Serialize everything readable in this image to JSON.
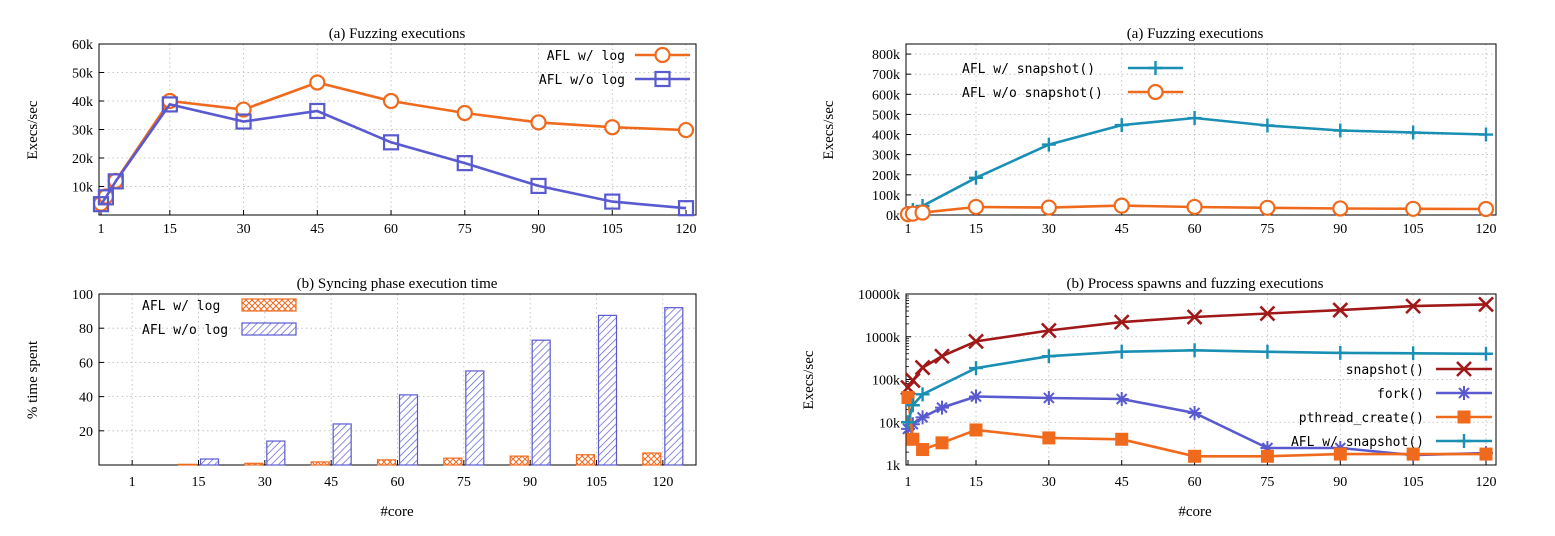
{
  "chart_data": [
    {
      "id": "execs_log",
      "type": "line",
      "title": "(a) Fuzzing executions",
      "xlabel": "",
      "ylabel": "Execs/sec",
      "x": [
        1,
        2,
        4,
        15,
        30,
        45,
        60,
        75,
        90,
        105,
        120
      ],
      "xticks": [
        1,
        15,
        30,
        45,
        60,
        75,
        90,
        105,
        120
      ],
      "ylim": [
        0,
        60000
      ],
      "yticks": [
        10000,
        20000,
        30000,
        40000,
        50000,
        60000
      ],
      "ytick_labels": [
        "10k",
        "20k",
        "30k",
        "40k",
        "50k",
        "60k"
      ],
      "grid": true,
      "legend_position": "top-right",
      "series": [
        {
          "name": "AFL w/   log",
          "color": "#f06a1e",
          "marker": "circle",
          "values": [
            4000,
            6500,
            12000,
            40000,
            37000,
            46500,
            40000,
            35800,
            32500,
            30800,
            29800
          ]
        },
        {
          "name": "AFL w/o log",
          "color": "#5a5ad0",
          "marker": "square",
          "values": [
            3800,
            6200,
            11800,
            38800,
            32800,
            36500,
            25500,
            18200,
            10200,
            4700,
            2400
          ]
        }
      ]
    },
    {
      "id": "sync_time",
      "type": "bar",
      "title": "(b) Syncing phase execution time",
      "xlabel": "#core",
      "ylabel": "% time spent",
      "categories": [
        "1",
        "15",
        "30",
        "45",
        "60",
        "75",
        "90",
        "105",
        "120"
      ],
      "ylim": [
        0,
        100
      ],
      "yticks": [
        20,
        40,
        60,
        80,
        100
      ],
      "grid": true,
      "legend_position": "top-left",
      "series": [
        {
          "name": "AFL w/   log",
          "color": "#f06a1e",
          "pattern": "crosshatch",
          "values": [
            0,
            0.4,
            1.0,
            1.8,
            3.0,
            4.0,
            5.2,
            6.0,
            7.0
          ]
        },
        {
          "name": "AFL w/o log",
          "color": "#5a5ad0",
          "pattern": "diagonal",
          "values": [
            0,
            3.5,
            14,
            24,
            41,
            55,
            73,
            87.5,
            92
          ]
        }
      ]
    },
    {
      "id": "execs_snapshot",
      "type": "line",
      "title": "(a) Fuzzing executions",
      "xlabel": "",
      "ylabel": "Execs/sec",
      "x": [
        1,
        2,
        4,
        15,
        30,
        45,
        60,
        75,
        90,
        105,
        120
      ],
      "xticks": [
        1,
        15,
        30,
        45,
        60,
        75,
        90,
        105,
        120
      ],
      "ylim": [
        0,
        850000
      ],
      "yticks": [
        0,
        100000,
        200000,
        300000,
        400000,
        500000,
        600000,
        700000,
        800000
      ],
      "ytick_labels": [
        "0k",
        "100k",
        "200k",
        "300k",
        "400k",
        "500k",
        "600k",
        "700k",
        "800k"
      ],
      "grid": true,
      "legend_position": "top-left",
      "series": [
        {
          "name": "AFL w/  snapshot()",
          "color": "#1a8fb4",
          "marker": "plus",
          "values": [
            10000,
            25000,
            45000,
            185000,
            350000,
            447000,
            482000,
            445000,
            420000,
            410000,
            400000
          ]
        },
        {
          "name": "AFL w/o snapshot()",
          "color": "#f06a1e",
          "marker": "circle",
          "values": [
            4000,
            6500,
            12000,
            40000,
            37000,
            46500,
            40000,
            35800,
            32500,
            30800,
            29800
          ]
        }
      ]
    },
    {
      "id": "spawns",
      "type": "line",
      "title": "(b) Process spawns and fuzzing executions",
      "xlabel": "#core",
      "ylabel": "Execs/sec",
      "x": [
        1,
        2,
        4,
        8,
        15,
        30,
        45,
        60,
        75,
        90,
        105,
        120
      ],
      "xticks": [
        1,
        15,
        30,
        45,
        60,
        75,
        90,
        105,
        120
      ],
      "yscale": "log",
      "ylim": [
        1000,
        10000000
      ],
      "yticks": [
        1000,
        10000,
        100000,
        1000000,
        10000000
      ],
      "ytick_labels": [
        "1k",
        "10k",
        "100k",
        "1000k",
        "10000k"
      ],
      "grid": true,
      "legend_position": "right",
      "series": [
        {
          "name": "snapshot()",
          "color": "#a01818",
          "marker": "x",
          "values": [
            65000,
            95000,
            190000,
            350000,
            780000,
            1400000,
            2200000,
            2900000,
            3500000,
            4200000,
            5200000,
            5700000
          ]
        },
        {
          "name": "fork()",
          "color": "#5a5ad0",
          "marker": "star",
          "values": [
            7000,
            9000,
            13000,
            22000,
            40000,
            37000,
            35000,
            16500,
            2500,
            2500,
            1700,
            1900
          ]
        },
        {
          "name": "pthread_create()",
          "color": "#f06a1e",
          "marker": "filled-square",
          "values": [
            38000,
            4000,
            2300,
            3300,
            6600,
            4300,
            4000,
            1600,
            1600,
            1800,
            1800,
            1800
          ]
        },
        {
          "name": "AFL w/  snapshot()",
          "color": "#1a8fb4",
          "marker": "plus",
          "values": [
            10000,
            25000,
            45000,
            null,
            185000,
            350000,
            447000,
            482000,
            445000,
            420000,
            410000,
            400000
          ]
        }
      ]
    }
  ]
}
